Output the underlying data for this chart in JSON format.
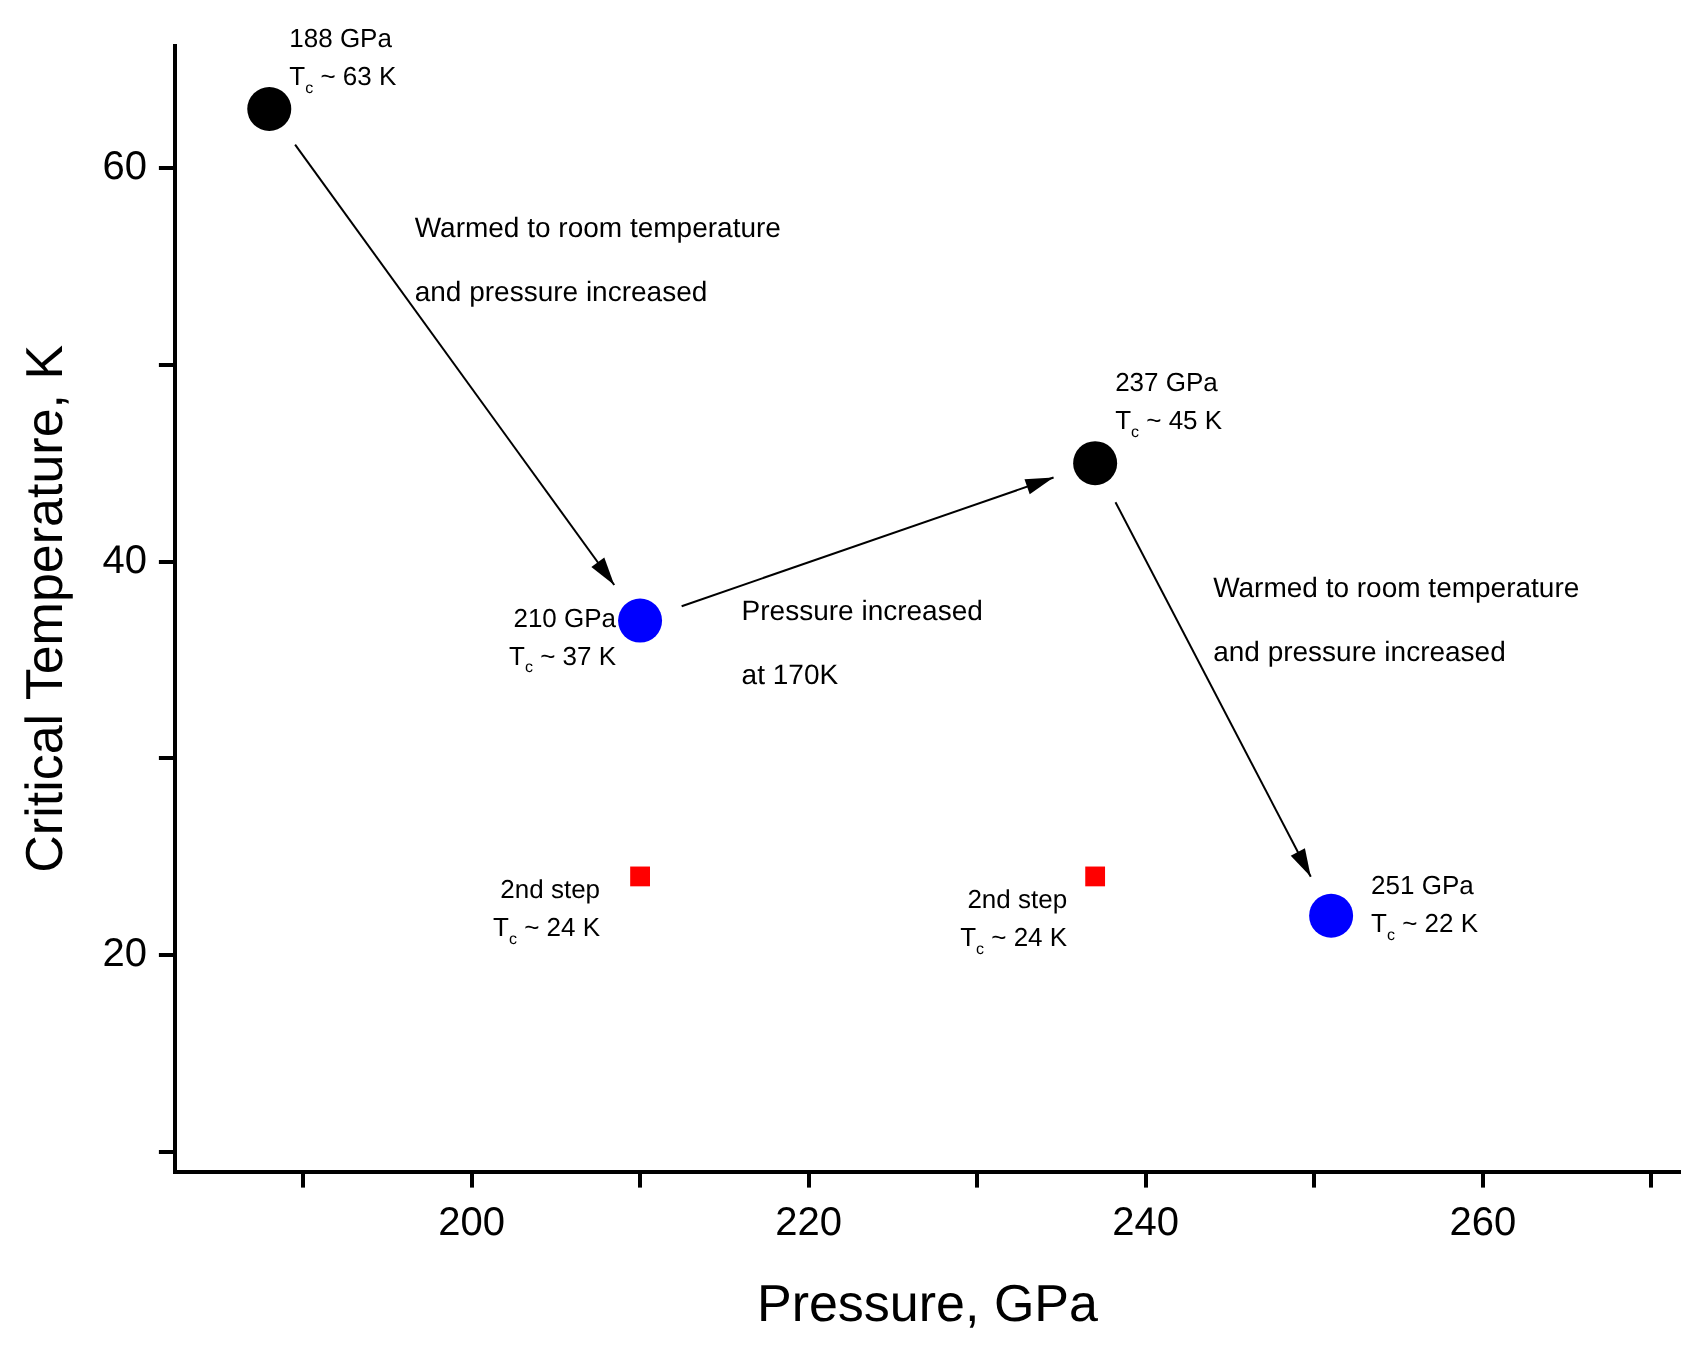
{
  "chart_data": {
    "type": "scatter",
    "xlabel": "Pressure, GPa",
    "ylabel": "Critical Temperature, K",
    "xlim": [
      182.4,
      271.7
    ],
    "ylim": [
      9,
      66.2
    ],
    "xticks": [
      {
        "value": 190,
        "label": null
      },
      200,
      {
        "value": 210,
        "label": null
      },
      220,
      {
        "value": 230,
        "label": null
      },
      240,
      {
        "value": 250,
        "label": null
      },
      260,
      {
        "value": 270,
        "label": null
      }
    ],
    "yticks": [
      {
        "value": 10,
        "label": null
      },
      20,
      {
        "value": 30,
        "label": null
      },
      40,
      {
        "value": 50,
        "label": null
      },
      60
    ],
    "grid": false,
    "legend": false,
    "series": [
      {
        "color": "#000000",
        "marker": "circle",
        "x": [
          188,
          237
        ],
        "values": [
          63,
          45
        ]
      },
      {
        "color": "#0000ff",
        "marker": "circle",
        "x": [
          210,
          251
        ],
        "values": [
          37,
          22
        ]
      },
      {
        "color": "#ff0000",
        "marker": "square",
        "x": [
          210,
          237
        ],
        "values": [
          24,
          24
        ]
      }
    ],
    "annotations": [
      {
        "text": "188 GPa\nT$_{c}$ ~ 63 K",
        "x": 188,
        "y": 63
      },
      {
        "text": "210 GPa\nT$_{c}$ ~ 37 K",
        "x": 210,
        "y": 37
      },
      {
        "text": "237 GPa\nT$_{c}$ ~ 45 K",
        "x": 237,
        "y": 45
      },
      {
        "text": "251 GPa\nT$_{c}$ ~ 22 K",
        "x": 251,
        "y": 22
      },
      {
        "text": "2nd step\nT$_{c}$ ~ 24 K",
        "x": 210,
        "y": 24
      },
      {
        "text": "2nd step\nT$_{c}$ ~ 24 K",
        "x": 237,
        "y": 24
      },
      "Warmed to room temperature\nand pressure increased",
      "Pressure increased\nat 170K",
      "Warmed to room temperature\nand pressure increased"
    ]
  }
}
